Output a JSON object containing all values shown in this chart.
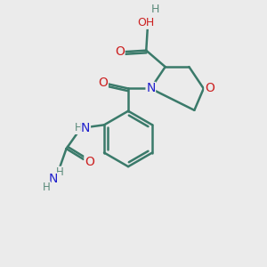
{
  "background_color": "#ebebeb",
  "atom_color_C": "#3a7a6a",
  "atom_color_N": "#2020cc",
  "atom_color_O": "#cc2020",
  "atom_color_H": "#5a8a7a",
  "bond_color": "#3a7a6a",
  "bond_width": 1.8,
  "font_size": 9,
  "fig_width": 3.0,
  "fig_height": 3.0,
  "dpi": 100,
  "xlim": [
    0,
    10
  ],
  "ylim": [
    0,
    10
  ]
}
